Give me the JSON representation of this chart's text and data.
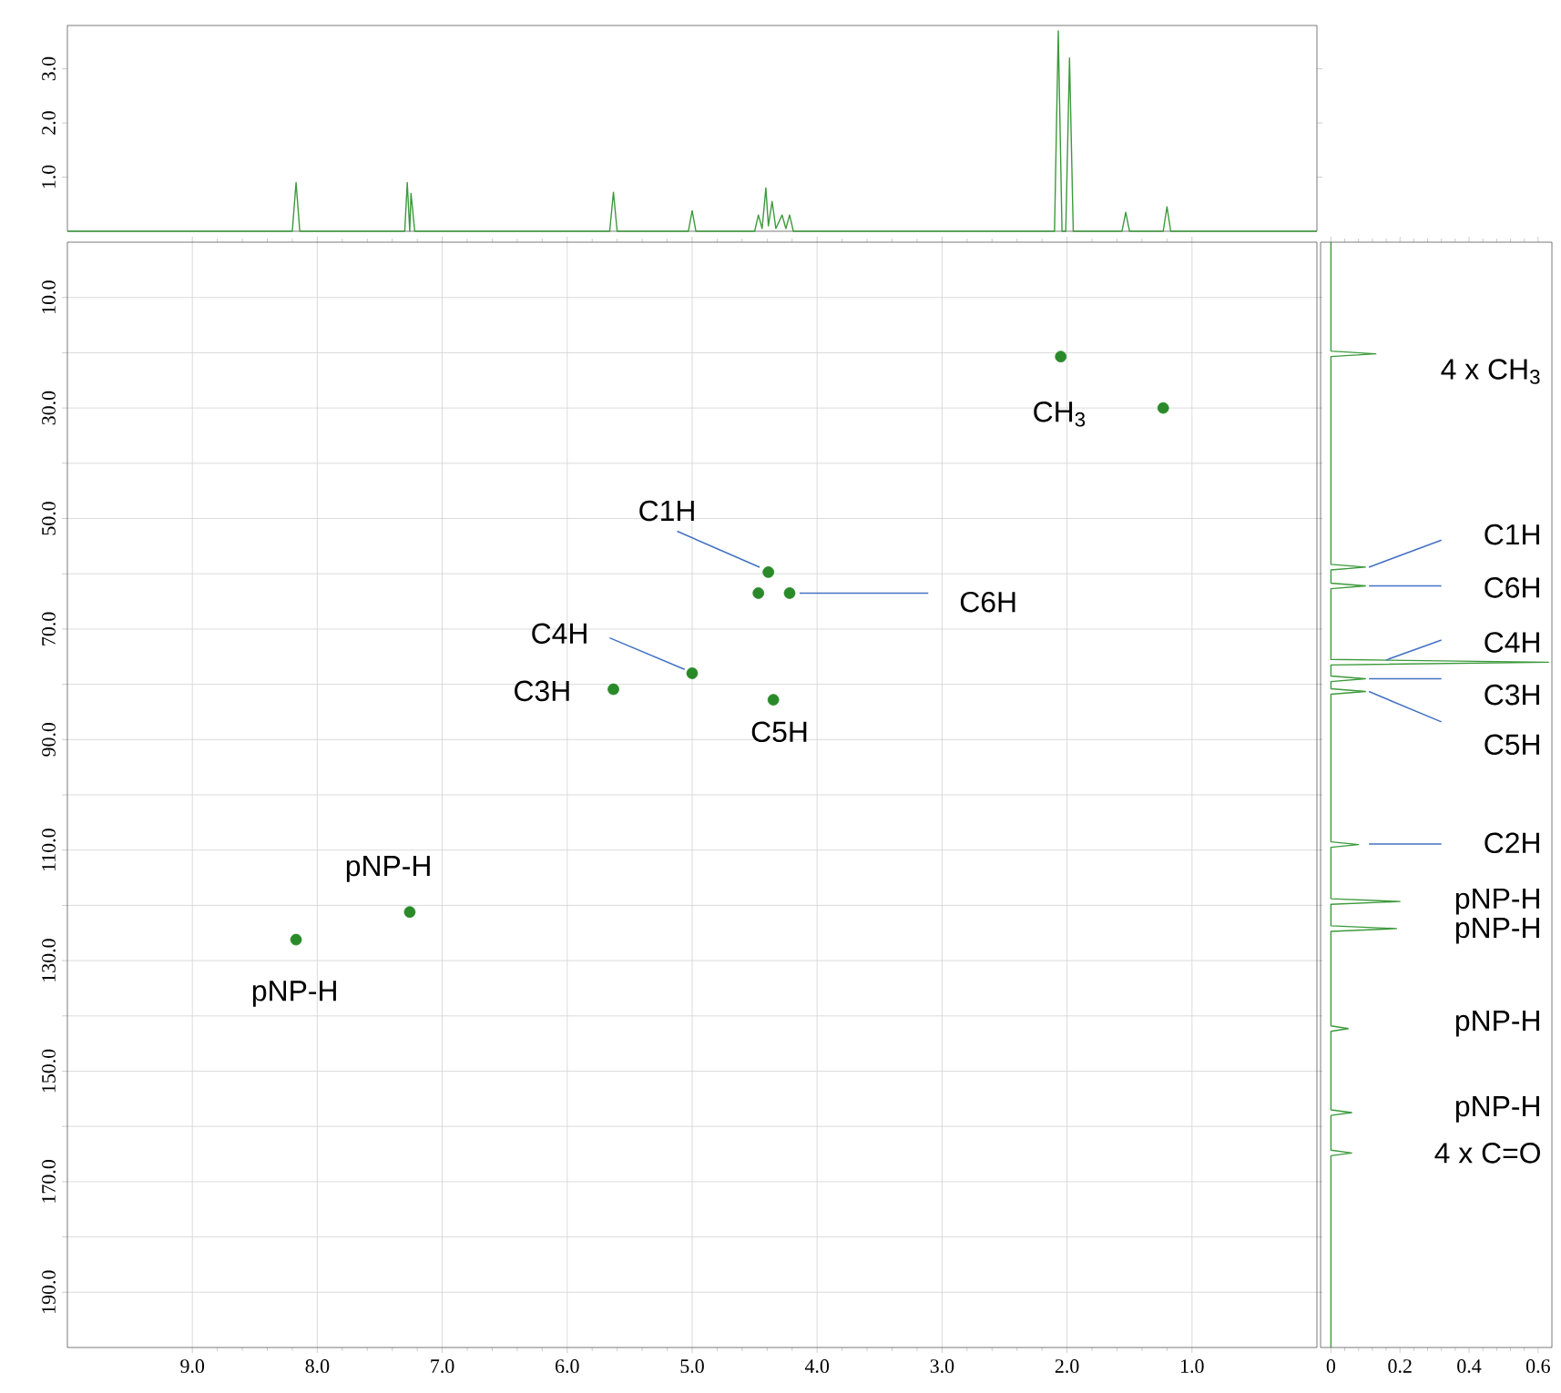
{
  "chart_data": [
    {
      "type": "line",
      "x": [
        10.0,
        8.2,
        8.17,
        8.14,
        7.3,
        7.28,
        7.26,
        7.25,
        7.22,
        5.66,
        5.63,
        5.6,
        5.03,
        5.0,
        4.97,
        4.5,
        4.47,
        4.44,
        4.41,
        4.39,
        4.36,
        4.33,
        4.28,
        4.25,
        4.22,
        4.19,
        2.1,
        2.07,
        2.04,
        2.01,
        1.98,
        1.95,
        1.56,
        1.53,
        1.5,
        1.23,
        1.2,
        1.17,
        0
      ],
      "series": [
        {
          "color": "#3c9a3c",
          "values": [
            0,
            0,
            0.9,
            0,
            0,
            0.9,
            0,
            0.7,
            0,
            0,
            0.72,
            0,
            0,
            0.38,
            0,
            0,
            0.3,
            0.05,
            0.8,
            0.1,
            0.55,
            0.05,
            0.3,
            0.05,
            0.3,
            0,
            0,
            3.7,
            0,
            0,
            3.2,
            0,
            0,
            0.35,
            0,
            0,
            0.45,
            0,
            0
          ]
        }
      ],
      "xlim": [
        10,
        0
      ],
      "ylim": [
        0,
        3.8
      ],
      "yticks": [
        {
          "value": 1,
          "label": "1.0"
        },
        {
          "value": 2,
          "label": "2.0"
        },
        {
          "value": 3,
          "label": "3.0"
        }
      ],
      "tick_labels": "y",
      "marker": "none"
    },
    {
      "type": "scatter",
      "x": [
        2.05,
        1.23,
        4.39,
        4.47,
        4.22,
        5.0,
        5.63,
        4.35,
        7.26,
        8.17
      ],
      "series": [
        {
          "color": "#2a8a2a",
          "values": [
            20.7,
            30.0,
            59.7,
            63.5,
            63.5,
            78.0,
            80.9,
            82.8,
            121.2,
            126.2
          ]
        }
      ],
      "marker": "circle",
      "grid": true,
      "xlim": [
        10,
        0
      ],
      "xticks": [
        {
          "value": 9,
          "label": "9.0"
        },
        {
          "value": 8,
          "label": "8.0"
        },
        {
          "value": 7,
          "label": "7.0"
        },
        {
          "value": 6,
          "label": "6.0"
        },
        {
          "value": 5,
          "label": "5.0"
        },
        {
          "value": 4,
          "label": "4.0"
        },
        {
          "value": 3,
          "label": "3.0"
        },
        {
          "value": 2,
          "label": "2.0"
        },
        {
          "value": 1,
          "label": "1.0"
        }
      ],
      "ylim": [
        200,
        0
      ],
      "yticks": [
        {
          "value": 10,
          "label": "10.0"
        },
        {
          "value": 20,
          "label": null
        },
        {
          "value": 30,
          "label": "30.0"
        },
        {
          "value": 40,
          "label": null
        },
        {
          "value": 50,
          "label": "50.0"
        },
        {
          "value": 60,
          "label": null
        },
        {
          "value": 70,
          "label": "70.0"
        },
        {
          "value": 80,
          "label": null
        },
        {
          "value": 90,
          "label": "90.0"
        },
        {
          "value": 100,
          "label": null
        },
        {
          "value": 110,
          "label": "110.0"
        },
        {
          "value": 120,
          "label": null
        },
        {
          "value": 130,
          "label": "130.0"
        },
        {
          "value": 140,
          "label": null
        },
        {
          "value": 150,
          "label": "150.0"
        },
        {
          "value": 160,
          "label": null
        },
        {
          "value": 170,
          "label": "170.0"
        },
        {
          "value": 180,
          "label": null
        },
        {
          "value": 190,
          "label": "190.0"
        }
      ],
      "annotations": [
        {
          "text": "CH$_{3}$",
          "x": 2.05,
          "y": 20.7
        },
        {
          "text": "C1H",
          "x": 4.39,
          "y": 59.7
        },
        {
          "text": "C6H",
          "x": 4.22,
          "y": 63.5
        },
        {
          "text": "C4H",
          "x": 5.0,
          "y": 78.0
        },
        {
          "text": "C3H",
          "x": 5.63,
          "y": 80.9
        },
        {
          "text": "C5H",
          "x": 4.35,
          "y": 82.8
        },
        {
          "text": "pNP-H",
          "x": 7.26,
          "y": 121.2
        },
        {
          "text": "pNP-H",
          "x": 8.17,
          "y": 126.2
        }
      ]
    },
    {
      "type": "line",
      "orientation": "horizontal",
      "x": [
        0,
        19.7,
        20.2,
        20.7,
        58.3,
        58.8,
        59.3,
        61.7,
        62.2,
        62.7,
        75.5,
        76.0,
        76.5,
        78.5,
        79.0,
        79.5,
        80.8,
        81.3,
        81.8,
        108.5,
        109.0,
        109.5,
        118.8,
        119.3,
        119.8,
        123.7,
        124.2,
        124.7,
        141.8,
        142.3,
        142.8,
        157.0,
        157.5,
        158.0,
        164.3,
        164.8,
        165.3,
        200
      ],
      "series": [
        {
          "color": "#3c9a3c",
          "values": [
            0,
            0,
            0.13,
            0,
            0,
            0.1,
            0,
            0,
            0.1,
            0,
            0,
            0.63,
            0,
            0,
            0.1,
            0,
            0,
            0.1,
            0,
            0,
            0.08,
            0,
            0,
            0.2,
            0,
            0,
            0.19,
            0,
            0,
            0.05,
            0,
            0,
            0.06,
            0,
            0,
            0.06,
            0,
            0
          ]
        }
      ],
      "xlim": [
        -0.03,
        0.64
      ],
      "xticks": [
        0,
        0.2,
        0.4,
        0.6
      ],
      "ylim": [
        200,
        0
      ],
      "tick_labels": "x",
      "marker": "none",
      "annotations": [
        "4 x CH$_{3}$",
        "C1H",
        "C6H",
        "C4H",
        "C3H",
        "C5H",
        "C2H",
        "pNP-H",
        "pNP-H",
        "pNP-H",
        "pNP-H",
        "4 x C=O"
      ]
    }
  ]
}
